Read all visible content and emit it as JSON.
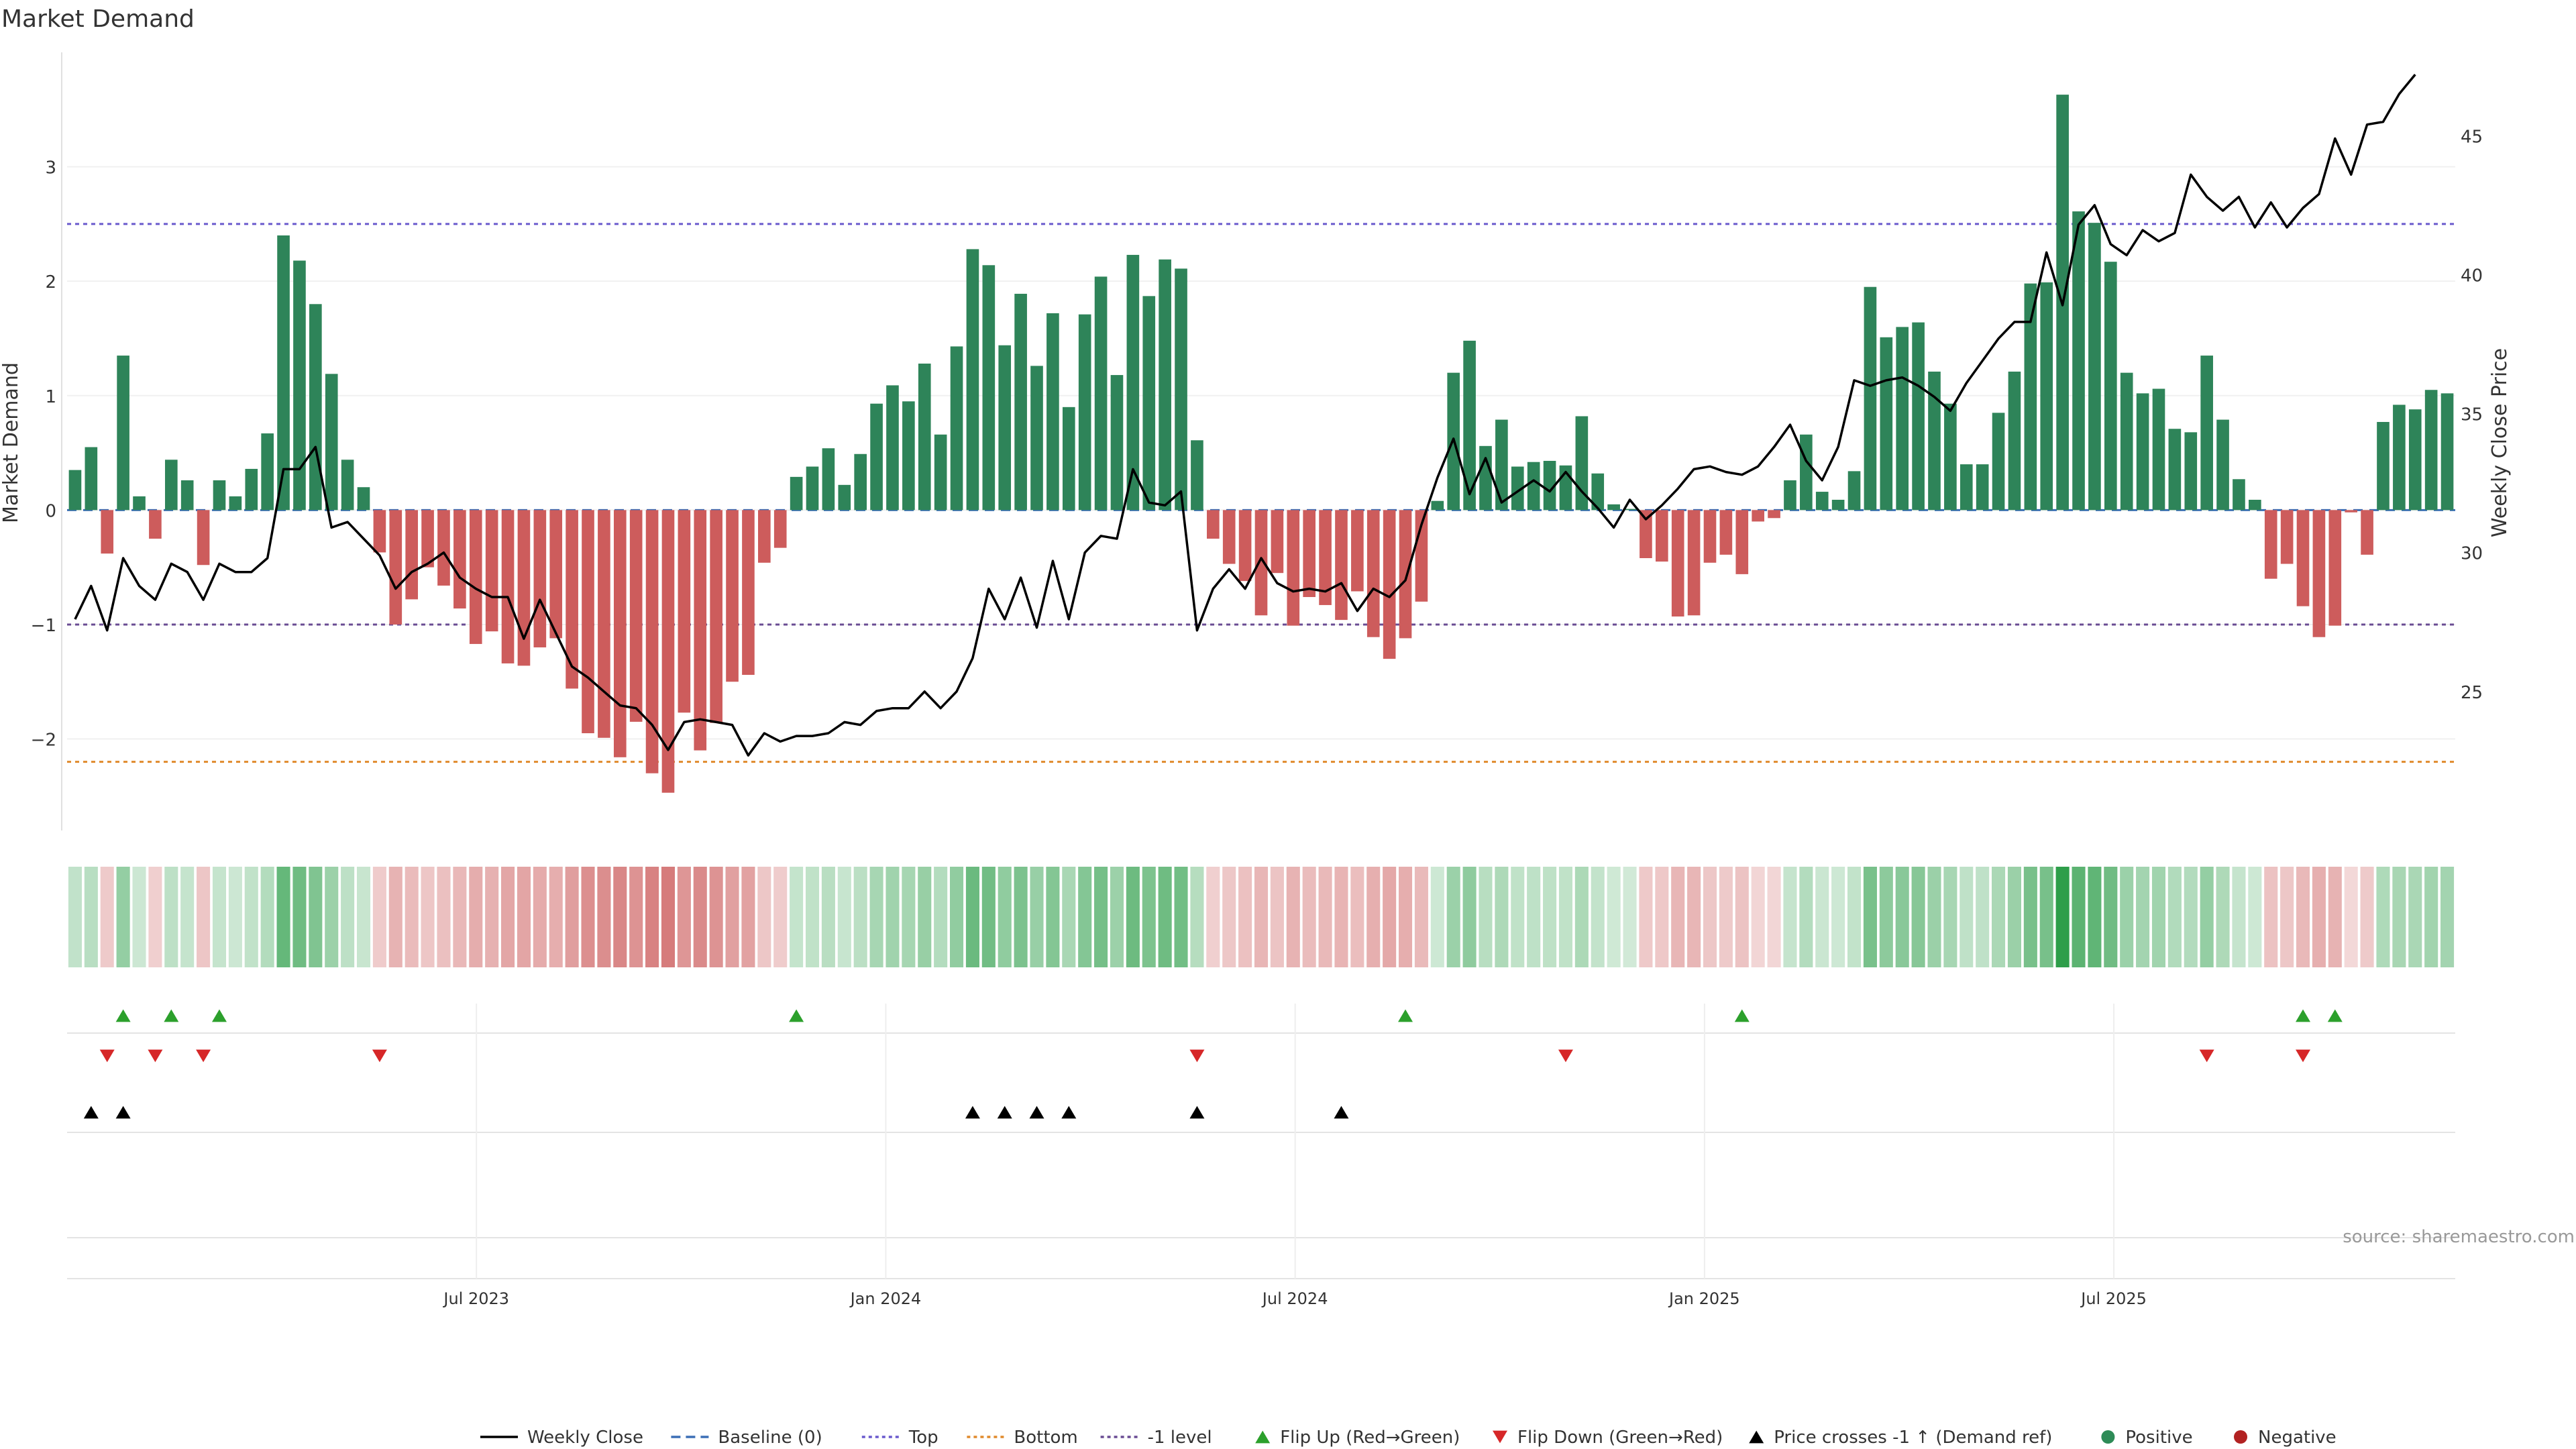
{
  "chart_data": {
    "type": "bar",
    "title": "Market Demand",
    "ylabel": "Market Demand",
    "y2label": "Weekly Close Price",
    "ylim": [
      -2.8,
      4.0
    ],
    "y2lim": [
      20.0,
      48.0
    ],
    "yticks": [
      -2,
      -1,
      0,
      1,
      2,
      3
    ],
    "yticklabels": [
      "−2",
      "−1",
      "0",
      "1",
      "2",
      "3"
    ],
    "y2ticks": [
      25,
      30,
      35,
      40,
      45
    ],
    "y2ticklabels": [
      "25",
      "30",
      "35",
      "40",
      "45"
    ],
    "x_months_range": [
      2023.0,
      2025.917
    ],
    "xticks": [
      2023.5,
      2024.0,
      2024.5,
      2025.0,
      2025.5
    ],
    "xticklabels": [
      "Jul 2023",
      "Jan 2024",
      "Jul 2024",
      "Jan 2025",
      "Jul 2025"
    ],
    "reference_lines": [
      {
        "name": "Top",
        "value": 2.5,
        "color": "#6a5acd"
      },
      {
        "name": "-1 level",
        "value": -1.0,
        "color": "#6a4c93"
      },
      {
        "name": "Bottom",
        "value": -2.2,
        "color": "#e08a2c"
      },
      {
        "name": "Baseline (0)",
        "value": 0.0,
        "color": "#3b6fb6"
      }
    ],
    "series": [
      {
        "name": "Market Demand",
        "values": [
          0.35,
          0.55,
          -0.38,
          1.35,
          0.12,
          -0.25,
          0.44,
          0.26,
          -0.48,
          0.26,
          0.12,
          0.36,
          0.67,
          2.4,
          2.18,
          1.8,
          1.19,
          0.44,
          0.2,
          -0.37,
          -1.0,
          -0.78,
          -0.5,
          -0.66,
          -0.86,
          -1.17,
          -1.06,
          -1.34,
          -1.36,
          -1.2,
          -1.12,
          -1.56,
          -1.95,
          -1.99,
          -2.16,
          -1.85,
          -2.3,
          -2.47,
          -1.77,
          -2.1,
          -1.86,
          -1.5,
          -1.44,
          -0.46,
          -0.33,
          0.29,
          0.38,
          0.54,
          0.22,
          0.49,
          0.93,
          1.09,
          0.95,
          1.28,
          0.66,
          1.43,
          2.28,
          2.14,
          1.44,
          1.89,
          1.26,
          1.72,
          0.9,
          1.71,
          2.04,
          1.18,
          2.23,
          1.87,
          2.19,
          2.11,
          0.61,
          -0.25,
          -0.47,
          -0.62,
          -0.92,
          -0.55,
          -1.01,
          -0.76,
          -0.83,
          -0.96,
          -0.71,
          -1.11,
          -1.3,
          -1.12,
          -0.8,
          0.08,
          1.2,
          1.48,
          0.56,
          0.79,
          0.38,
          0.42,
          0.43,
          0.39,
          0.82,
          0.32,
          0.05,
          0.01,
          -0.42,
          -0.45,
          -0.93,
          -0.92,
          -0.46,
          -0.39,
          -0.56,
          -0.1,
          -0.07,
          0.26,
          0.66,
          0.16,
          0.09,
          0.34,
          1.95,
          1.51,
          1.6,
          1.64,
          1.21,
          0.93,
          0.4,
          0.4,
          0.85,
          1.21,
          1.98,
          1.99,
          3.63,
          2.61,
          2.51,
          2.17,
          1.2,
          1.02,
          1.06,
          0.71,
          0.68,
          1.35,
          0.79,
          0.27,
          0.09,
          -0.6,
          -0.47,
          -0.84,
          -1.11,
          -1.01,
          -0.02,
          -0.39,
          0.77,
          0.92,
          0.88,
          1.05,
          1.02
        ]
      },
      {
        "name": "Weekly Close",
        "values": [
          27.6,
          28.8,
          27.2,
          29.8,
          28.8,
          28.3,
          29.6,
          29.3,
          28.3,
          29.6,
          29.3,
          29.3,
          29.8,
          33.0,
          33.0,
          33.8,
          30.9,
          31.1,
          30.5,
          29.9,
          28.7,
          29.3,
          29.6,
          30.0,
          29.1,
          28.7,
          28.4,
          28.4,
          26.9,
          28.3,
          27.1,
          25.9,
          25.5,
          25.0,
          24.5,
          24.4,
          23.8,
          22.9,
          23.9,
          24.0,
          23.9,
          23.8,
          22.7,
          23.5,
          23.2,
          23.4,
          23.4,
          23.5,
          23.9,
          23.8,
          24.3,
          24.4,
          24.4,
          25.0,
          24.4,
          25.0,
          26.2,
          28.7,
          27.6,
          29.1,
          27.3,
          29.7,
          27.6,
          30.0,
          30.6,
          30.5,
          33.0,
          31.8,
          31.7,
          32.2,
          27.2,
          28.7,
          29.4,
          28.7,
          29.8,
          28.9,
          28.6,
          28.7,
          28.6,
          28.9,
          27.9,
          28.7,
          28.4,
          29.0,
          31.0,
          32.7,
          34.1,
          32.1,
          33.4,
          31.8,
          32.2,
          32.6,
          32.2,
          32.9,
          32.2,
          31.6,
          30.9,
          31.9,
          31.2,
          31.7,
          32.3,
          33.0,
          33.1,
          32.9,
          32.8,
          33.1,
          33.8,
          34.6,
          33.3,
          32.6,
          33.8,
          36.2,
          36.0,
          36.2,
          36.3,
          36.0,
          35.6,
          35.1,
          36.1,
          36.9,
          37.7,
          38.3,
          38.3,
          40.8,
          38.9,
          41.8,
          42.5,
          41.1,
          40.7,
          41.6,
          41.2,
          41.5,
          43.6,
          42.8,
          42.3,
          42.8,
          41.7,
          42.6,
          41.7,
          42.4,
          42.9,
          44.9,
          43.6,
          45.4,
          45.5,
          46.5,
          47.2
        ]
      }
    ],
    "flip_up_weeks": [
      3,
      6,
      9,
      45,
      83,
      104,
      139,
      141
    ],
    "flip_down_weeks": [
      2,
      5,
      8,
      19,
      70,
      93,
      133,
      139
    ],
    "price_cross_weeks": [
      1,
      3,
      56,
      58,
      60,
      62,
      70,
      79
    ],
    "legend": {
      "placement": "bottom-center",
      "entries": [
        {
          "label": "Weekly Close",
          "marker": "line-solid",
          "color": "#000000"
        },
        {
          "label": "Baseline (0)",
          "marker": "line-dashed",
          "color": "#3b6fb6"
        },
        {
          "label": "Top",
          "marker": "line-dotted",
          "color": "#6a5acd"
        },
        {
          "label": "Bottom",
          "marker": "line-dotted",
          "color": "#e08a2c"
        },
        {
          "label": "-1 level",
          "marker": "line-dotted",
          "color": "#6a4c93"
        },
        {
          "label": "Flip Up (Red→Green)",
          "marker": "triangle-up",
          "color": "#2ca02c"
        },
        {
          "label": "Flip Down (Green→Red)",
          "marker": "triangle-down",
          "color": "#d62728"
        },
        {
          "label": "Price crosses -1 ↑ (Demand ref)",
          "marker": "triangle-up",
          "color": "#000000"
        },
        {
          "label": "Positive",
          "marker": "circle",
          "color": "#2e8b57"
        },
        {
          "label": "Negative",
          "marker": "circle",
          "color": "#b22222"
        }
      ]
    },
    "source_note": "source: sharemaestro.com",
    "colors": {
      "positive_bar": "#2e8459",
      "negative_bar": "#cd5c5c",
      "price_line": "#000000",
      "heat_positive": "#2e9e4a",
      "heat_negative": "#c85050"
    }
  }
}
